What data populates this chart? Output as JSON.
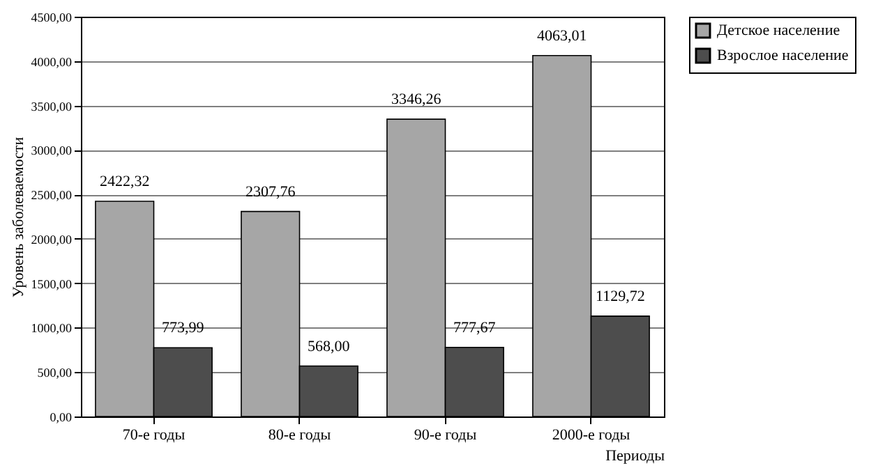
{
  "chart_data": {
    "type": "bar",
    "xlabel": "Периоды",
    "ylabel": "Уровень заболеваемости",
    "categories": [
      "70-е годы",
      "80-е годы",
      "90-е годы",
      "2000-е годы"
    ],
    "series": [
      {
        "name": "Детское население",
        "color": "#a6a6a6",
        "values": [
          2422.32,
          2307.76,
          3346.26,
          4063.01
        ],
        "value_labels": [
          "2422,32",
          "2307,76",
          "3346,26",
          "4063,01"
        ]
      },
      {
        "name": "Взрослое население",
        "color": "#4d4d4d",
        "values": [
          773.99,
          568.0,
          777.67,
          1129.72
        ],
        "value_labels": [
          "773,99",
          "568,00",
          "777,67",
          "1129,72"
        ]
      }
    ],
    "ylim": [
      0,
      4500
    ],
    "yticks": [
      {
        "value": 0,
        "label": "0,00"
      },
      {
        "value": 500,
        "label": "500,00"
      },
      {
        "value": 1000,
        "label": "1000,00"
      },
      {
        "value": 1500,
        "label": "1500,00"
      },
      {
        "value": 2000,
        "label": "2000,00"
      },
      {
        "value": 2500,
        "label": "2500,00"
      },
      {
        "value": 3000,
        "label": "3000,00"
      },
      {
        "value": 3500,
        "label": "3500,00"
      },
      {
        "value": 4000,
        "label": "4000,00"
      },
      {
        "value": 4500,
        "label": "4500,00"
      }
    ],
    "grid": "y",
    "legend": "top right"
  }
}
